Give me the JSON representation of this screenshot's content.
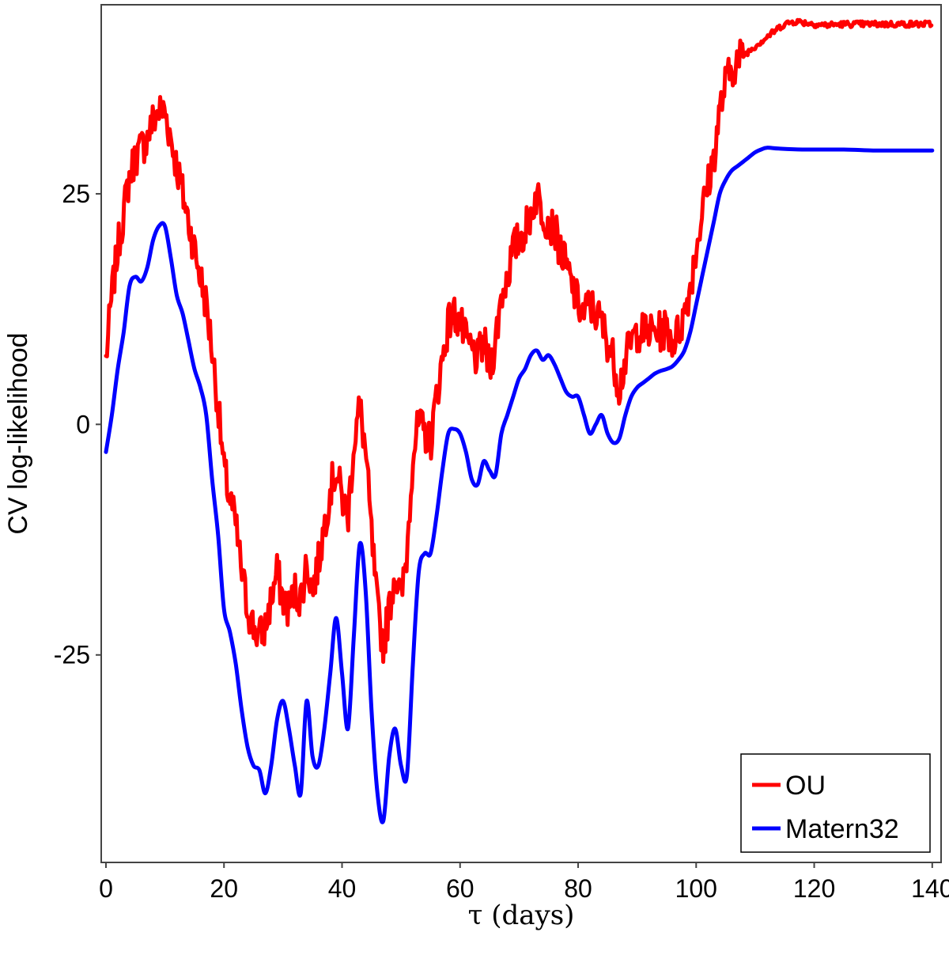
{
  "chart_data": {
    "type": "line",
    "title": "",
    "xlabel": "τ (days)",
    "ylabel": "CV log-likelihood",
    "xlim": [
      -0.8,
      141.5
    ],
    "ylim": [
      -47.5,
      45.5
    ],
    "x_ticks": [
      0,
      20,
      40,
      60,
      80,
      100,
      120,
      140
    ],
    "y_ticks": [
      -25,
      0,
      25
    ],
    "x_tick_labels": [
      "0",
      "20",
      "40",
      "60",
      "80",
      "100",
      "120",
      "140"
    ],
    "y_tick_labels": [
      "-25",
      "0",
      "25"
    ],
    "grid": false,
    "legend_position": "bottom-right",
    "series": [
      {
        "name": "OU",
        "color": "#ff0000",
        "noise": 2.2,
        "points": [
          [
            0,
            7
          ],
          [
            1,
            14
          ],
          [
            2,
            19
          ],
          [
            3,
            23
          ],
          [
            4,
            27
          ],
          [
            5,
            29
          ],
          [
            6,
            30
          ],
          [
            7,
            31
          ],
          [
            8,
            33
          ],
          [
            9,
            34
          ],
          [
            10,
            34
          ],
          [
            11,
            31
          ],
          [
            12,
            28
          ],
          [
            13,
            25
          ],
          [
            14,
            22
          ],
          [
            15,
            19
          ],
          [
            16,
            16
          ],
          [
            17,
            13
          ],
          [
            18,
            8
          ],
          [
            19,
            2
          ],
          [
            20,
            -5
          ],
          [
            21,
            -8
          ],
          [
            22,
            -11
          ],
          [
            23,
            -16
          ],
          [
            24,
            -20
          ],
          [
            25,
            -22
          ],
          [
            26,
            -23
          ],
          [
            27,
            -22
          ],
          [
            28,
            -19
          ],
          [
            29,
            -16
          ],
          [
            30,
            -19
          ],
          [
            31,
            -20
          ],
          [
            32,
            -18
          ],
          [
            33,
            -19
          ],
          [
            34,
            -15
          ],
          [
            35,
            -18
          ],
          [
            36,
            -15
          ],
          [
            37,
            -11
          ],
          [
            38,
            -7
          ],
          [
            39,
            -5
          ],
          [
            40,
            -8
          ],
          [
            41,
            -10
          ],
          [
            42,
            -2
          ],
          [
            43,
            2
          ],
          [
            44,
            -3
          ],
          [
            45,
            -12
          ],
          [
            46,
            -20
          ],
          [
            47,
            -24
          ],
          [
            48,
            -20
          ],
          [
            49,
            -16
          ],
          [
            50,
            -19
          ],
          [
            51,
            -14
          ],
          [
            52,
            -3
          ],
          [
            53,
            0
          ],
          [
            54,
            -1
          ],
          [
            55,
            -2
          ],
          [
            56,
            3
          ],
          [
            57,
            7
          ],
          [
            58,
            11
          ],
          [
            59,
            12
          ],
          [
            60,
            11
          ],
          [
            61,
            9
          ],
          [
            62,
            8
          ],
          [
            63,
            7
          ],
          [
            64,
            9
          ],
          [
            65,
            6
          ],
          [
            66,
            9
          ],
          [
            67,
            14
          ],
          [
            68,
            16
          ],
          [
            69,
            19
          ],
          [
            70,
            20
          ],
          [
            71,
            21
          ],
          [
            72,
            23
          ],
          [
            73,
            25
          ],
          [
            74,
            23
          ],
          [
            75,
            22
          ],
          [
            76,
            21
          ],
          [
            77,
            19
          ],
          [
            78,
            17
          ],
          [
            79,
            15
          ],
          [
            80,
            13
          ],
          [
            81,
            12
          ],
          [
            82,
            13
          ],
          [
            83,
            12
          ],
          [
            84,
            11
          ],
          [
            85,
            9
          ],
          [
            86,
            7
          ],
          [
            87,
            4
          ],
          [
            88,
            7
          ],
          [
            89,
            9
          ],
          [
            90,
            10
          ],
          [
            91,
            10
          ],
          [
            92,
            10
          ],
          [
            93,
            10
          ],
          [
            94,
            10
          ],
          [
            95,
            10.5
          ],
          [
            96,
            9
          ],
          [
            97,
            10
          ],
          [
            98,
            12
          ],
          [
            99,
            15
          ],
          [
            100,
            19
          ],
          [
            101,
            23
          ],
          [
            102,
            26
          ],
          [
            103,
            29
          ],
          [
            104,
            34
          ],
          [
            105,
            37
          ],
          [
            106,
            38.5
          ],
          [
            107,
            39.5
          ],
          [
            108,
            40
          ],
          [
            109,
            40.5
          ],
          [
            110,
            41
          ],
          [
            111,
            41.5
          ],
          [
            112,
            42
          ],
          [
            113,
            42.5
          ],
          [
            114,
            43
          ],
          [
            115,
            43.4
          ],
          [
            116,
            43.6
          ],
          [
            117,
            43.7
          ],
          [
            118,
            43.6
          ],
          [
            120,
            43.4
          ],
          [
            122,
            43.3
          ],
          [
            125,
            43.4
          ],
          [
            130,
            43.4
          ],
          [
            135,
            43.4
          ],
          [
            140,
            43.4
          ]
        ]
      },
      {
        "name": "Matern32",
        "color": "#0000ff",
        "noise": 0,
        "points": [
          [
            0,
            -3
          ],
          [
            1,
            1
          ],
          [
            2,
            6
          ],
          [
            3,
            10
          ],
          [
            4,
            15
          ],
          [
            5,
            16
          ],
          [
            6,
            15.5
          ],
          [
            7,
            17
          ],
          [
            8,
            20
          ],
          [
            9,
            21.5
          ],
          [
            10,
            21.5
          ],
          [
            11,
            18
          ],
          [
            12,
            14
          ],
          [
            13,
            12
          ],
          [
            14,
            9
          ],
          [
            15,
            6
          ],
          [
            16,
            4
          ],
          [
            17,
            1
          ],
          [
            18,
            -6
          ],
          [
            19,
            -12
          ],
          [
            20,
            -20
          ],
          [
            21,
            -22.5
          ],
          [
            22,
            -26
          ],
          [
            23,
            -31
          ],
          [
            24,
            -35
          ],
          [
            25,
            -37
          ],
          [
            26,
            -37.5
          ],
          [
            27,
            -40
          ],
          [
            28,
            -37
          ],
          [
            29,
            -32
          ],
          [
            30,
            -30
          ],
          [
            31,
            -33
          ],
          [
            32,
            -37
          ],
          [
            33,
            -40
          ],
          [
            34,
            -30
          ],
          [
            35,
            -36
          ],
          [
            36,
            -37
          ],
          [
            37,
            -33
          ],
          [
            38,
            -27
          ],
          [
            39,
            -21
          ],
          [
            40,
            -27
          ],
          [
            41,
            -33
          ],
          [
            42,
            -23
          ],
          [
            43,
            -13
          ],
          [
            44,
            -18
          ],
          [
            45,
            -31
          ],
          [
            46,
            -40
          ],
          [
            47,
            -43
          ],
          [
            48,
            -36
          ],
          [
            49,
            -33
          ],
          [
            50,
            -37
          ],
          [
            51,
            -38
          ],
          [
            52,
            -26
          ],
          [
            53,
            -16
          ],
          [
            54,
            -14
          ],
          [
            55,
            -14
          ],
          [
            56,
            -10
          ],
          [
            57,
            -5
          ],
          [
            58,
            -1
          ],
          [
            59,
            -0.5
          ],
          [
            60,
            -1
          ],
          [
            61,
            -3
          ],
          [
            62,
            -6
          ],
          [
            63,
            -6.5
          ],
          [
            64,
            -4
          ],
          [
            65,
            -5
          ],
          [
            66,
            -5.5
          ],
          [
            67,
            -1
          ],
          [
            68,
            1
          ],
          [
            69,
            3
          ],
          [
            70,
            5
          ],
          [
            71,
            6
          ],
          [
            72,
            7.5
          ],
          [
            73,
            8
          ],
          [
            74,
            7
          ],
          [
            75,
            7.5
          ],
          [
            76,
            6.5
          ],
          [
            77,
            5
          ],
          [
            78,
            3.5
          ],
          [
            79,
            3
          ],
          [
            80,
            3
          ],
          [
            81,
            1
          ],
          [
            82,
            -1
          ],
          [
            83,
            0
          ],
          [
            84,
            1
          ],
          [
            85,
            -1
          ],
          [
            86,
            -2
          ],
          [
            87,
            -1.5
          ],
          [
            88,
            1
          ],
          [
            89,
            3
          ],
          [
            90,
            4
          ],
          [
            91,
            4.5
          ],
          [
            92,
            5
          ],
          [
            93,
            5.5
          ],
          [
            94,
            5.8
          ],
          [
            95,
            6
          ],
          [
            96,
            6.3
          ],
          [
            97,
            7
          ],
          [
            98,
            8
          ],
          [
            99,
            10
          ],
          [
            100,
            13
          ],
          [
            101,
            16
          ],
          [
            102,
            19
          ],
          [
            103,
            22
          ],
          [
            104,
            25
          ],
          [
            105,
            26.5
          ],
          [
            106,
            27.5
          ],
          [
            107,
            28
          ],
          [
            108,
            28.5
          ],
          [
            109,
            29
          ],
          [
            110,
            29.5
          ],
          [
            111,
            29.8
          ],
          [
            112,
            30
          ],
          [
            114,
            29.9
          ],
          [
            118,
            29.8
          ],
          [
            125,
            29.8
          ],
          [
            130,
            29.7
          ],
          [
            135,
            29.7
          ],
          [
            140,
            29.7
          ]
        ]
      }
    ]
  }
}
